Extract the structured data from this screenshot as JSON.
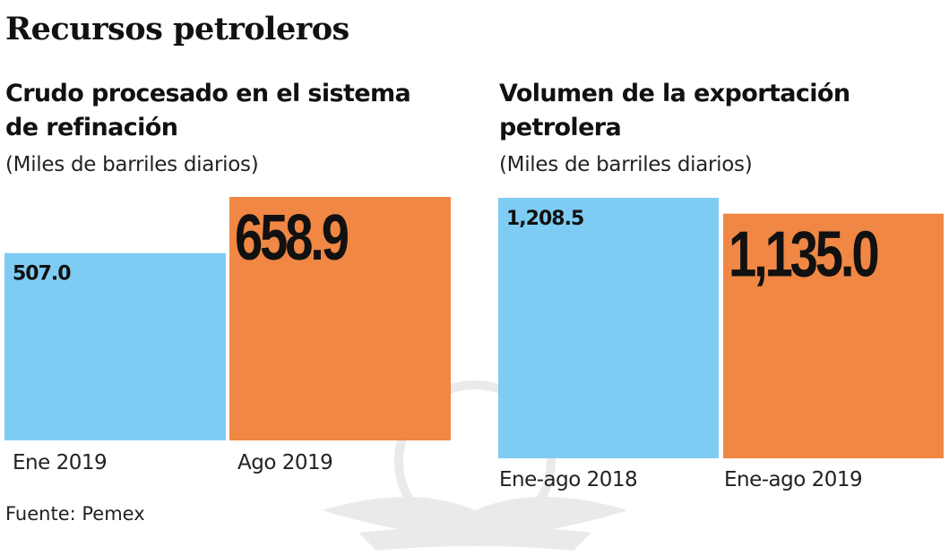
{
  "title": "Recursos petroleros",
  "source": "Fuente: Pemex",
  "colors": {
    "first": "#7ECCF4",
    "second": "#F08744",
    "text": "#111111"
  },
  "chart_data": [
    {
      "type": "bar",
      "title_lines": [
        "Crudo procesado en el sistema",
        "de refinación"
      ],
      "ylabel": "(Miles de barriles diarios)",
      "categories": [
        "Ene 2019",
        "Ago 2019"
      ],
      "values": [
        507.0,
        658.9
      ],
      "value_labels": [
        "507.0",
        "658.9"
      ],
      "grid": false,
      "ylim": [
        0,
        658.9
      ]
    },
    {
      "type": "bar",
      "title_lines": [
        "Volumen de la exportación",
        "petrolera"
      ],
      "ylabel": "(Miles de barriles diarios)",
      "categories": [
        "Ene-ago 2018",
        "Ene-ago 2019"
      ],
      "values": [
        1208.5,
        1135.0
      ],
      "value_labels": [
        "1,208.5",
        "1,135.0"
      ],
      "grid": false,
      "ylim": [
        0,
        1208.5
      ]
    }
  ]
}
